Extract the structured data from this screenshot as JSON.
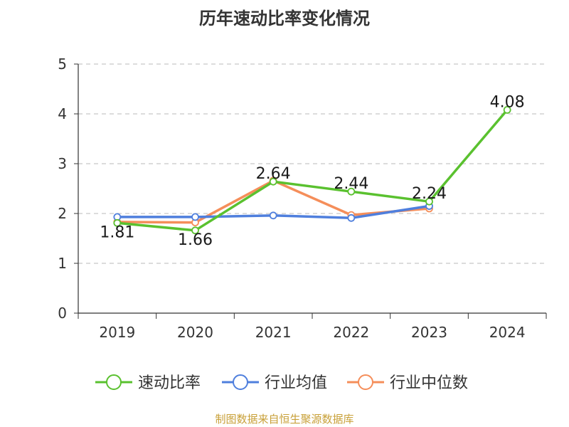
{
  "chart_data": {
    "type": "line",
    "title": "历年速动比率变化情况",
    "categories": [
      "2019",
      "2020",
      "2021",
      "2022",
      "2023",
      "2024"
    ],
    "ylim": [
      0,
      5
    ],
    "yticks": [
      0,
      1,
      2,
      3,
      4,
      5
    ],
    "grid": true,
    "legend_position": "bottom",
    "series": [
      {
        "name": "速动比率",
        "color": "#5ac12f",
        "values": [
          1.81,
          1.66,
          2.64,
          2.44,
          2.24,
          4.08
        ],
        "labels": [
          "1.81",
          "1.66",
          "2.64",
          "2.44",
          "2.24",
          "4.08"
        ]
      },
      {
        "name": "行业均值",
        "color": "#4f7fdd",
        "values": [
          1.93,
          1.93,
          1.96,
          1.91,
          2.15,
          null
        ]
      },
      {
        "name": "行业中位数",
        "color": "#f58e5a",
        "values": [
          1.83,
          1.82,
          2.66,
          1.97,
          2.1,
          null
        ]
      }
    ]
  },
  "source": "制图数据来自恒生聚源数据库"
}
